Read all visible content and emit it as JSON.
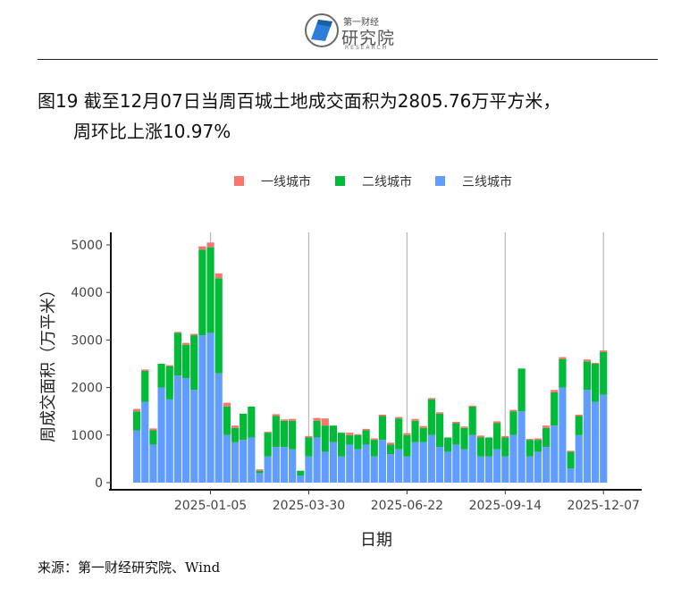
{
  "header": {
    "logo_small": "第一财经",
    "logo_big": "研究院",
    "logo_en": "RESEARCH"
  },
  "title": {
    "line1": "图19 截至12月07日当周百城土地成交面积为2805.76万平方米，",
    "line2": "周环比上涨10.97%"
  },
  "source": "来源：第一财经研究院、Wind",
  "colors": {
    "tier1": "#F8766D",
    "tier2": "#00BA38",
    "tier3": "#619CFF"
  },
  "chart_data": {
    "type": "bar",
    "stacked": true,
    "xlabel": "日期",
    "ylabel": "周成交面积（万平米）",
    "ylim": [
      0,
      5200
    ],
    "yticks": [
      0,
      1000,
      2000,
      3000,
      4000,
      5000
    ],
    "xticks": [
      "2025-01-05",
      "2025-03-30",
      "2025-06-22",
      "2025-09-14",
      "2025-12-07"
    ],
    "xtick_positions": [
      9,
      21,
      33,
      45,
      57
    ],
    "legend_position": "top",
    "series": [
      {
        "name": "一线城市",
        "values": [
          50,
          30,
          40,
          0,
          20,
          20,
          40,
          30,
          70,
          100,
          100,
          80,
          50,
          0,
          0,
          30,
          20,
          40,
          30,
          40,
          0,
          30,
          60,
          150,
          0,
          0,
          50,
          20,
          30,
          30,
          30,
          40,
          30,
          40,
          40,
          40,
          30,
          30,
          0,
          30,
          30,
          20,
          40,
          0,
          40,
          30,
          30,
          0,
          20,
          30,
          50,
          50,
          40,
          20,
          30,
          40,
          20,
          30
        ]
      },
      {
        "name": "二线城市",
        "values": [
          400,
          650,
          300,
          500,
          700,
          900,
          700,
          1150,
          1800,
          1800,
          2000,
          600,
          300,
          550,
          650,
          50,
          500,
          650,
          550,
          600,
          100,
          400,
          350,
          550,
          350,
          500,
          200,
          300,
          300,
          350,
          500,
          200,
          650,
          450,
          450,
          300,
          750,
          700,
          300,
          450,
          450,
          600,
          400,
          400,
          550,
          400,
          500,
          900,
          350,
          250,
          400,
          700,
          600,
          350,
          400,
          600,
          800,
          900
        ]
      },
      {
        "name": "三线城市",
        "values": [
          1100,
          1700,
          800,
          2000,
          1750,
          2250,
          2200,
          1950,
          3100,
          3150,
          2300,
          1000,
          850,
          900,
          950,
          200,
          550,
          750,
          750,
          700,
          150,
          550,
          950,
          650,
          850,
          550,
          800,
          700,
          800,
          550,
          900,
          600,
          700,
          550,
          850,
          850,
          1000,
          750,
          650,
          800,
          700,
          1000,
          550,
          550,
          700,
          550,
          1000,
          1500,
          550,
          650,
          750,
          1200,
          2000,
          300,
          1000,
          1950,
          1700,
          1850
        ]
      }
    ]
  }
}
